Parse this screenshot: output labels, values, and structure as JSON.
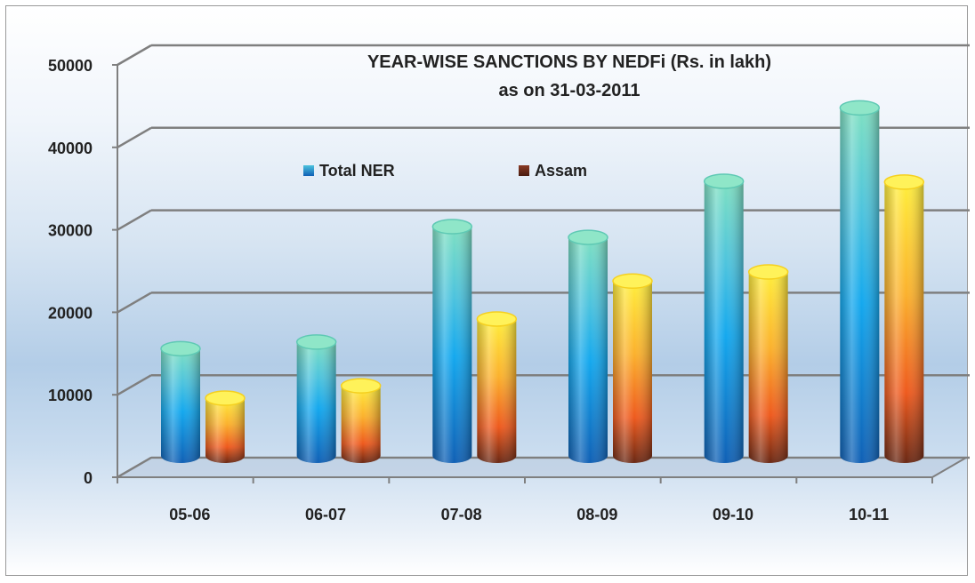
{
  "chart_data": {
    "type": "bar",
    "title": "YEAR-WISE SANCTIONS BY NEDFi  (Rs. in lakh)",
    "subtitle": "as on 31-03-2011",
    "categories": [
      "05-06",
      "06-07",
      "07-08",
      "08-09",
      "09-10",
      "10-11"
    ],
    "series": [
      {
        "name": "Total NER",
        "values": [
          13000,
          13800,
          27800,
          26500,
          33300,
          42200
        ],
        "color": "#1e88d6"
      },
      {
        "name": "Assam",
        "values": [
          7000,
          8500,
          16600,
          21200,
          22300,
          33200
        ],
        "color": "#6b2e1e"
      }
    ],
    "ylim": [
      0,
      50000
    ],
    "yticks": [
      "0",
      "10000",
      "20000",
      "30000",
      "40000",
      "50000"
    ],
    "grid": true,
    "legend": "top-center",
    "style": "3d-cylinder"
  }
}
